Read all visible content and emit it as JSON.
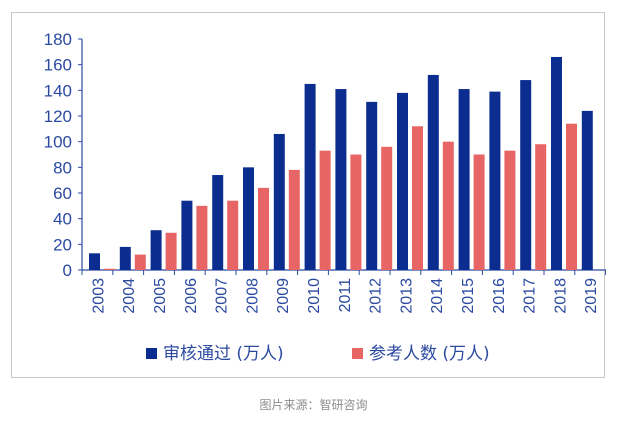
{
  "caption": "图片来源：智研咨询",
  "colors": {
    "series1": "#0a2d8f",
    "series2": "#e86565",
    "axis": "#2b4aa0"
  },
  "chart_data": {
    "type": "bar",
    "categories": [
      "2003",
      "2004",
      "2005",
      "2006",
      "2007",
      "2008",
      "2009",
      "2010",
      "2011",
      "2012",
      "2013",
      "2014",
      "2015",
      "2016",
      "2017",
      "2018",
      "2019"
    ],
    "series": [
      {
        "name": "审核通过 (万人)",
        "values": [
          13,
          18,
          31,
          54,
          74,
          80,
          106,
          145,
          141,
          131,
          138,
          152,
          141,
          139,
          148,
          166,
          124
        ]
      },
      {
        "name": "参考人数 (万人)",
        "values": [
          1,
          12,
          29,
          50,
          54,
          64,
          78,
          93,
          90,
          96,
          112,
          100,
          90,
          93,
          98,
          114,
          null
        ]
      }
    ],
    "ylim": [
      0,
      180
    ],
    "yticks": [
      0,
      20,
      40,
      60,
      80,
      100,
      120,
      140,
      160,
      180
    ],
    "legend_position": "bottom",
    "grid": false
  }
}
